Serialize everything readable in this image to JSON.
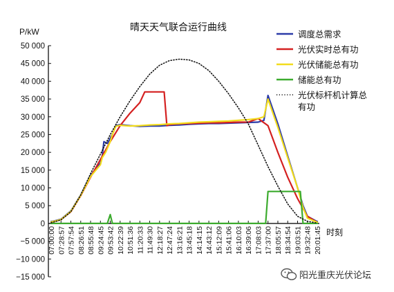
{
  "chart_data": {
    "type": "line",
    "title": "晴天天气联合运行曲线",
    "ylabel": "P/kW",
    "xlabel": "时刻",
    "ylim": [
      -15000,
      50000
    ],
    "yticks": [
      50000,
      45000,
      40000,
      35000,
      30000,
      25000,
      20000,
      15000,
      10000,
      5000,
      0,
      -5000,
      -10000,
      -15000
    ],
    "ytick_labels": [
      "50 000",
      "45 000",
      "40 000",
      "35 000",
      "30 000",
      "25 000",
      "20 000",
      "15 000",
      "10 000",
      "5 000",
      "0",
      "−5 000",
      "−10 000",
      "−15 000"
    ],
    "x_ticks": [
      "07:00:00",
      "07:28:57",
      "07:57:54",
      "08:26:51",
      "08:55:48",
      "09:24:45",
      "09:53:42",
      "10:22:39",
      "10:51:36",
      "11:20:33",
      "11:49:30",
      "12:18:27",
      "12:47:24",
      "13:16:21",
      "13:45:18",
      "14:14:15",
      "14:43:12",
      "15:12:09",
      "15:41:06",
      "16:10:03",
      "16:39:06",
      "17:08:03",
      "17:37:00",
      "18:05:57",
      "18:34:54",
      "19:03:51",
      "19:32:48",
      "20:01:45"
    ],
    "legend_position": "top-right",
    "grid": false,
    "series": [
      {
        "name": "调度总需求",
        "color": "#2b3aa8",
        "style": "solid",
        "x": [
          "07:00:00",
          "07:28:57",
          "07:57:54",
          "08:26:51",
          "08:55:48",
          "09:24:45",
          "09:30:00",
          "09:35:00",
          "09:45:00",
          "09:53:42",
          "10:00:00",
          "10:10:00",
          "10:22:39",
          "10:51:36",
          "11:20:33",
          "11:49:30",
          "12:18:27",
          "12:47:24",
          "13:16:21",
          "13:45:18",
          "14:14:15",
          "14:43:12",
          "15:12:09",
          "15:41:06",
          "16:10:03",
          "16:39:06",
          "17:08:03",
          "17:25:00",
          "17:37:00",
          "18:05:57",
          "18:34:54",
          "19:03:51",
          "19:20:00",
          "19:32:48",
          "20:01:45"
        ],
        "y": [
          500,
          1200,
          3500,
          8000,
          13500,
          17000,
          19000,
          23000,
          22500,
          24000,
          25000,
          27500,
          27800,
          27500,
          27300,
          27400,
          27400,
          27600,
          27700,
          27900,
          28000,
          28100,
          28100,
          28200,
          28300,
          28400,
          28500,
          29000,
          36000,
          28000,
          19000,
          10000,
          5000,
          2000,
          500
        ]
      },
      {
        "name": "光伏实时总有功",
        "color": "#d42020",
        "style": "solid",
        "x": [
          "07:00:00",
          "07:28:57",
          "07:57:54",
          "08:26:51",
          "08:55:48",
          "09:24:45",
          "09:53:42",
          "10:22:39",
          "10:51:36",
          "11:20:33",
          "11:35:00",
          "11:49:30",
          "12:18:27",
          "12:32:00",
          "12:40:00",
          "12:47:24",
          "13:16:21",
          "13:45:18",
          "14:14:15",
          "14:43:12",
          "15:12:09",
          "15:41:06",
          "16:10:03",
          "16:39:06",
          "17:08:03",
          "17:37:00",
          "18:05:57",
          "18:34:54",
          "19:03:51",
          "19:32:48",
          "20:01:45"
        ],
        "y": [
          300,
          1100,
          3300,
          7800,
          13000,
          18000,
          23000,
          27500,
          31000,
          34000,
          37000,
          37000,
          37000,
          37000,
          27500,
          27800,
          28000,
          28100,
          28200,
          28300,
          28300,
          28400,
          28500,
          28500,
          29500,
          27500,
          20000,
          13000,
          7000,
          2000,
          300
        ]
      },
      {
        "name": "光伏储能总有功",
        "color": "#f2dc1c",
        "style": "solid",
        "x": [
          "07:00:00",
          "07:28:57",
          "07:57:54",
          "08:26:51",
          "08:55:48",
          "09:24:45",
          "09:30:00",
          "09:40:00",
          "09:53:42",
          "10:00:00",
          "10:10:00",
          "10:22:39",
          "10:51:36",
          "11:20:33",
          "11:49:30",
          "12:18:27",
          "12:47:24",
          "13:16:21",
          "13:45:18",
          "14:14:15",
          "14:43:12",
          "15:12:09",
          "15:41:06",
          "16:10:03",
          "16:39:06",
          "17:08:03",
          "17:25:00",
          "17:37:00",
          "18:05:57",
          "18:34:54",
          "19:03:51",
          "19:20:00",
          "19:32:48",
          "20:01:45"
        ],
        "y": [
          400,
          1100,
          3400,
          7900,
          13200,
          16500,
          18500,
          20000,
          23000,
          25000,
          27300,
          27600,
          27400,
          27500,
          27700,
          27800,
          28000,
          28100,
          28300,
          28500,
          28600,
          28700,
          28800,
          29000,
          29200,
          29500,
          30000,
          35000,
          27000,
          18500,
          10000,
          4500,
          1500,
          300
        ]
      },
      {
        "name": "储能总有功",
        "color": "#3cab2e",
        "style": "solid",
        "x": [
          "07:00:00",
          "09:24:45",
          "09:45:00",
          "09:53:42",
          "10:00:00",
          "10:22:39",
          "10:51:36",
          "11:20:33",
          "11:49:30",
          "12:18:27",
          "12:47:24",
          "13:16:21",
          "13:45:18",
          "14:14:15",
          "14:43:12",
          "15:12:09",
          "15:41:06",
          "16:10:03",
          "16:39:06",
          "17:08:03",
          "17:30:00",
          "17:37:00",
          "18:05:57",
          "18:34:54",
          "19:03:51",
          "19:12:00",
          "19:20:00",
          "19:32:48",
          "20:01:45"
        ],
        "y": [
          0,
          0,
          0,
          2500,
          0,
          0,
          0,
          0,
          0,
          0,
          0,
          0,
          0,
          0,
          0,
          0,
          0,
          0,
          0,
          0,
          0,
          9000,
          9000,
          9000,
          9000,
          9000,
          0,
          0,
          0
        ]
      },
      {
        "name": "光伏标杆机计算总有功",
        "color": "#111111",
        "style": "dotted",
        "x": [
          "07:00:00",
          "07:28:57",
          "07:57:54",
          "08:26:51",
          "08:55:48",
          "09:24:45",
          "09:53:42",
          "10:22:39",
          "10:51:36",
          "11:20:33",
          "11:49:30",
          "12:18:27",
          "12:47:24",
          "13:16:21",
          "13:45:18",
          "14:14:15",
          "14:43:12",
          "15:12:09",
          "15:41:06",
          "16:10:03",
          "16:39:06",
          "17:08:03",
          "17:37:00",
          "18:05:57",
          "18:34:54",
          "19:03:51",
          "19:32:48",
          "20:01:45"
        ],
        "y": [
          200,
          1000,
          3300,
          8000,
          14000,
          19500,
          25000,
          30000,
          34500,
          38500,
          42000,
          44500,
          45800,
          46200,
          46000,
          45000,
          43000,
          40000,
          36500,
          32500,
          28000,
          22000,
          16000,
          10500,
          5500,
          2000,
          600,
          100
        ]
      }
    ]
  },
  "watermark": {
    "text": "阳光重庆光伏论坛",
    "icon": "wechat-icon"
  }
}
